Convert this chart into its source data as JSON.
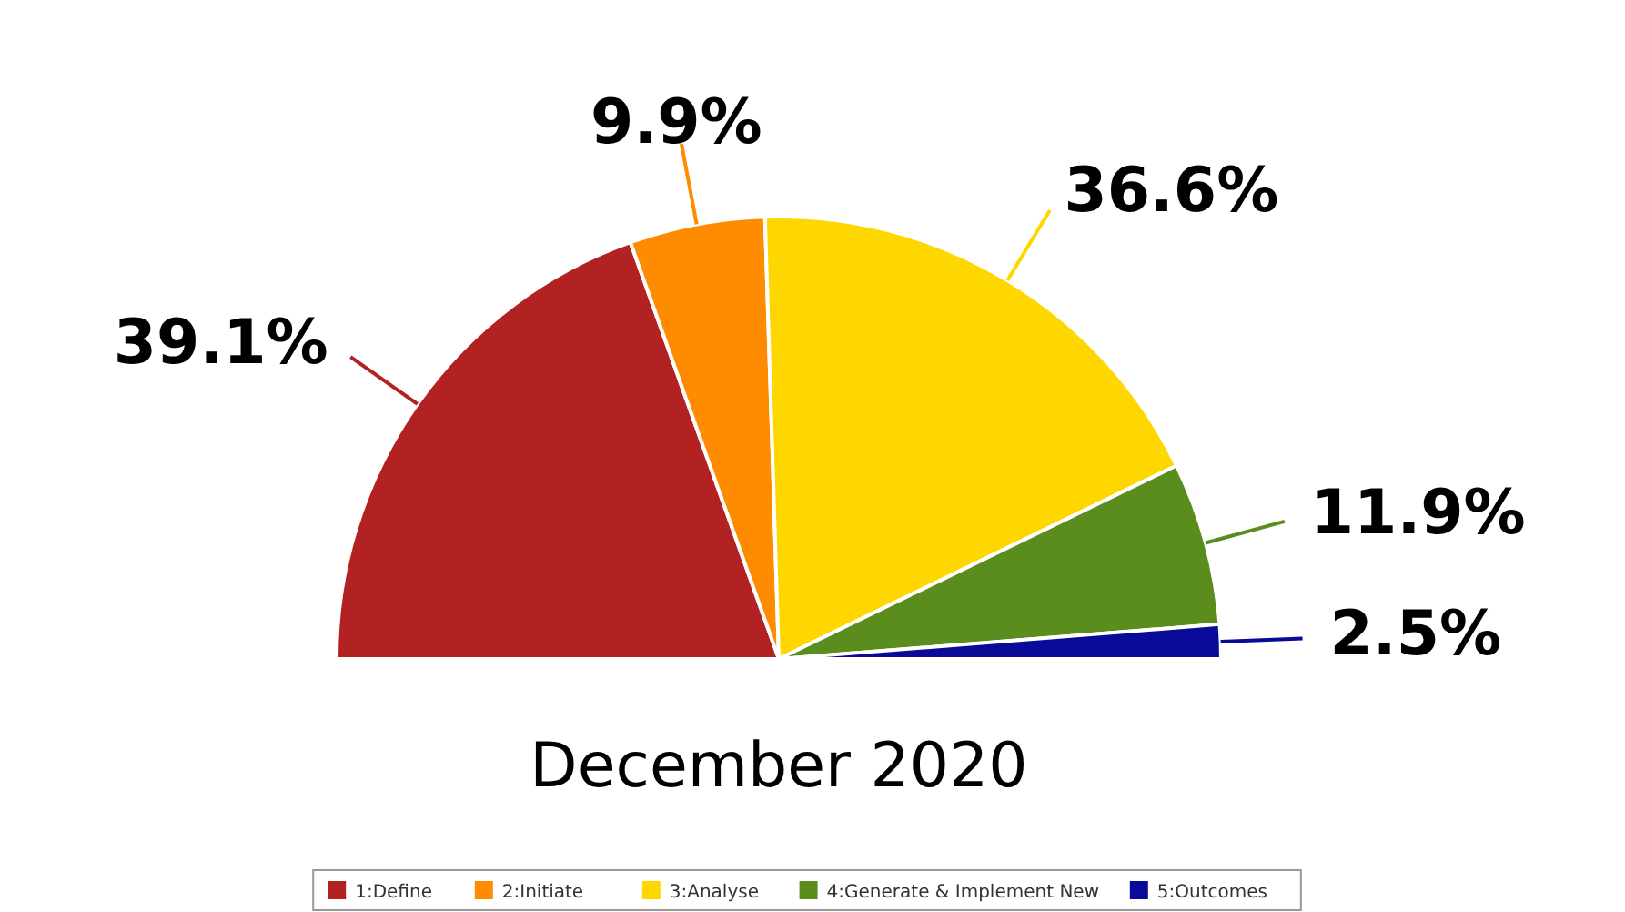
{
  "chart_data": {
    "type": "pie",
    "title": "December 2020",
    "categories": [
      "1:Define",
      "2:Initiate",
      "3:Analyse",
      "4:Generate & Implement New",
      "5:Outcomes"
    ],
    "values": [
      39.1,
      9.9,
      36.6,
      11.9,
      2.5
    ],
    "value_labels": [
      "39.1%",
      "9.9%",
      "36.6%",
      "11.9%",
      "2.5%"
    ],
    "colors": [
      "#b22222",
      "#ff8c00",
      "#ffd700",
      "#5b8c1e",
      "#0a0a99"
    ],
    "legend": "bottom"
  }
}
